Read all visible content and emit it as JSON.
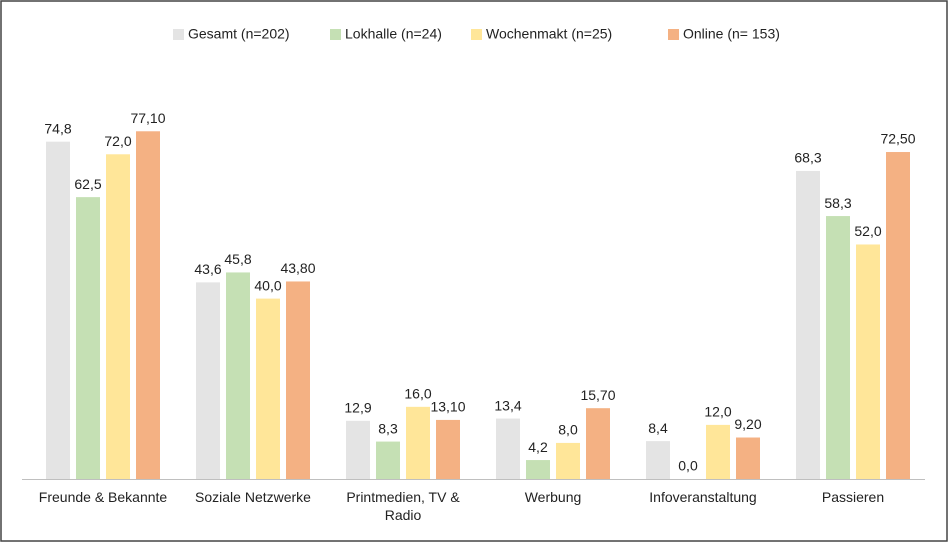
{
  "chart_data": {
    "type": "bar",
    "categories": [
      "Freunde & Bekannte",
      "Soziale Netzwerke",
      "Printmedien, TV & Radio",
      "Werbung",
      "Infoveranstaltung",
      "Passieren"
    ],
    "series": [
      {
        "name": "Gesamt (n=202)",
        "color": "#e4e4e4",
        "values": [
          74.8,
          43.6,
          12.9,
          13.4,
          8.4,
          68.3
        ],
        "value_labels": [
          "74,8",
          "43,6",
          "12,9",
          "13,4",
          "8,4",
          "68,3"
        ]
      },
      {
        "name": "Lokhalle (n=24)",
        "color": "#c5e0b4",
        "values": [
          62.5,
          45.8,
          8.3,
          4.2,
          0.0,
          58.3
        ],
        "value_labels": [
          "62,5",
          "45,8",
          "8,3",
          "4,2",
          "0,0",
          "58,3"
        ]
      },
      {
        "name": "Wochenmakt (n=25)",
        "color": "#ffe699",
        "values": [
          72.0,
          40.0,
          16.0,
          8.0,
          12.0,
          52.0
        ],
        "value_labels": [
          "72,0",
          "40,0",
          "16,0",
          "8,0",
          "12,0",
          "52,0"
        ]
      },
      {
        "name": "Online (n= 153)",
        "color": "#f4b183",
        "values": [
          77.1,
          43.8,
          13.1,
          15.7,
          9.2,
          72.5
        ],
        "value_labels": [
          "77,10",
          "43,80",
          "13,10",
          "15,70",
          "9,20",
          "72,50"
        ]
      }
    ],
    "legend": "top"
  }
}
